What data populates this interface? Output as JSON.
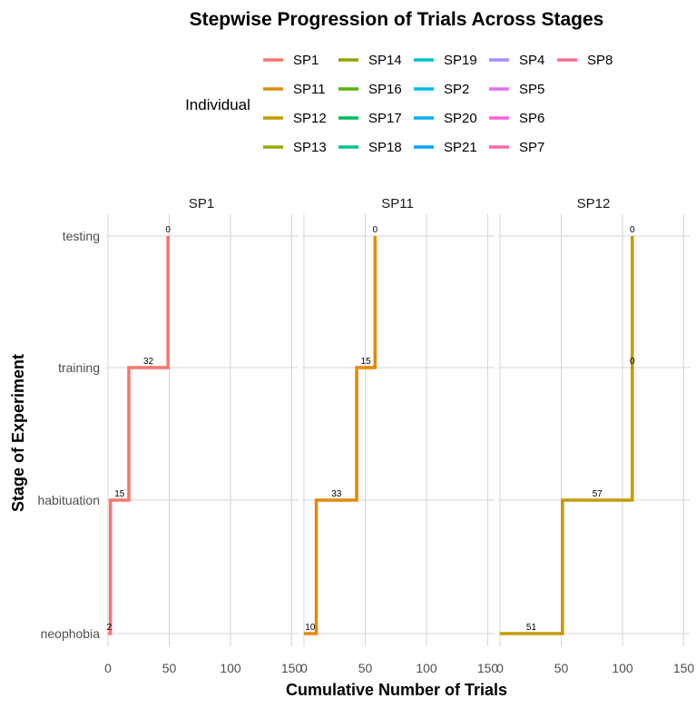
{
  "chart_data": {
    "type": "line",
    "title": "Stepwise Progression of Trials Across Stages",
    "xlabel": "Cumulative Number of Trials",
    "ylabel": "Stage of Experiment",
    "categories": [
      "neophobia",
      "habituation",
      "training",
      "testing"
    ],
    "xlim": [
      0,
      150
    ],
    "x_ticks": [
      0,
      50,
      100,
      150
    ],
    "grid": true,
    "legend": {
      "title": "Individual",
      "placement": "top",
      "entries": [
        {
          "name": "SP1",
          "color": "#F8766D"
        },
        {
          "name": "SP11",
          "color": "#E38900"
        },
        {
          "name": "SP12",
          "color": "#C49A00"
        },
        {
          "name": "SP13",
          "color": "#99A800"
        },
        {
          "name": "SP14",
          "color": "#8DA50A"
        },
        {
          "name": "SP16",
          "color": "#53B400"
        },
        {
          "name": "SP17",
          "color": "#00BC56"
        },
        {
          "name": "SP18",
          "color": "#00C094"
        },
        {
          "name": "SP19",
          "color": "#00BFC4"
        },
        {
          "name": "SP2",
          "color": "#00B6EB"
        },
        {
          "name": "SP20",
          "color": "#00B0F6"
        },
        {
          "name": "SP21",
          "color": "#06A4FF"
        },
        {
          "name": "SP4",
          "color": "#A58AFF"
        },
        {
          "name": "SP5",
          "color": "#DF70F8"
        },
        {
          "name": "SP6",
          "color": "#FB61D7"
        },
        {
          "name": "SP7",
          "color": "#FF66A8"
        },
        {
          "name": "SP8",
          "color": "#FF6C91"
        }
      ]
    },
    "panels": [
      {
        "name": "SP1",
        "color": "#F8766D",
        "steps": [
          {
            "stage": "neophobia",
            "x_start": 0,
            "x_end": 2,
            "label": "2"
          },
          {
            "stage": "habituation",
            "x_start": 2,
            "x_end": 17,
            "label": "15"
          },
          {
            "stage": "training",
            "x_start": 17,
            "x_end": 49,
            "label": "32"
          },
          {
            "stage": "testing",
            "x_start": 49,
            "x_end": 49,
            "label": "0"
          }
        ]
      },
      {
        "name": "SP11",
        "color": "#E38900",
        "steps": [
          {
            "stage": "neophobia",
            "x_start": 0,
            "x_end": 10,
            "label": "10"
          },
          {
            "stage": "habituation",
            "x_start": 10,
            "x_end": 43,
            "label": "33"
          },
          {
            "stage": "training",
            "x_start": 43,
            "x_end": 58,
            "label": "15"
          },
          {
            "stage": "testing",
            "x_start": 58,
            "x_end": 58,
            "label": "0"
          }
        ]
      },
      {
        "name": "SP12",
        "color": "#C49A00",
        "steps": [
          {
            "stage": "neophobia",
            "x_start": 0,
            "x_end": 51,
            "label": "51"
          },
          {
            "stage": "habituation",
            "x_start": 51,
            "x_end": 108,
            "label": "57"
          },
          {
            "stage": "training",
            "x_start": 108,
            "x_end": 108,
            "label": "0"
          },
          {
            "stage": "testing",
            "x_start": 108,
            "x_end": 108,
            "label": "0"
          }
        ]
      }
    ]
  }
}
